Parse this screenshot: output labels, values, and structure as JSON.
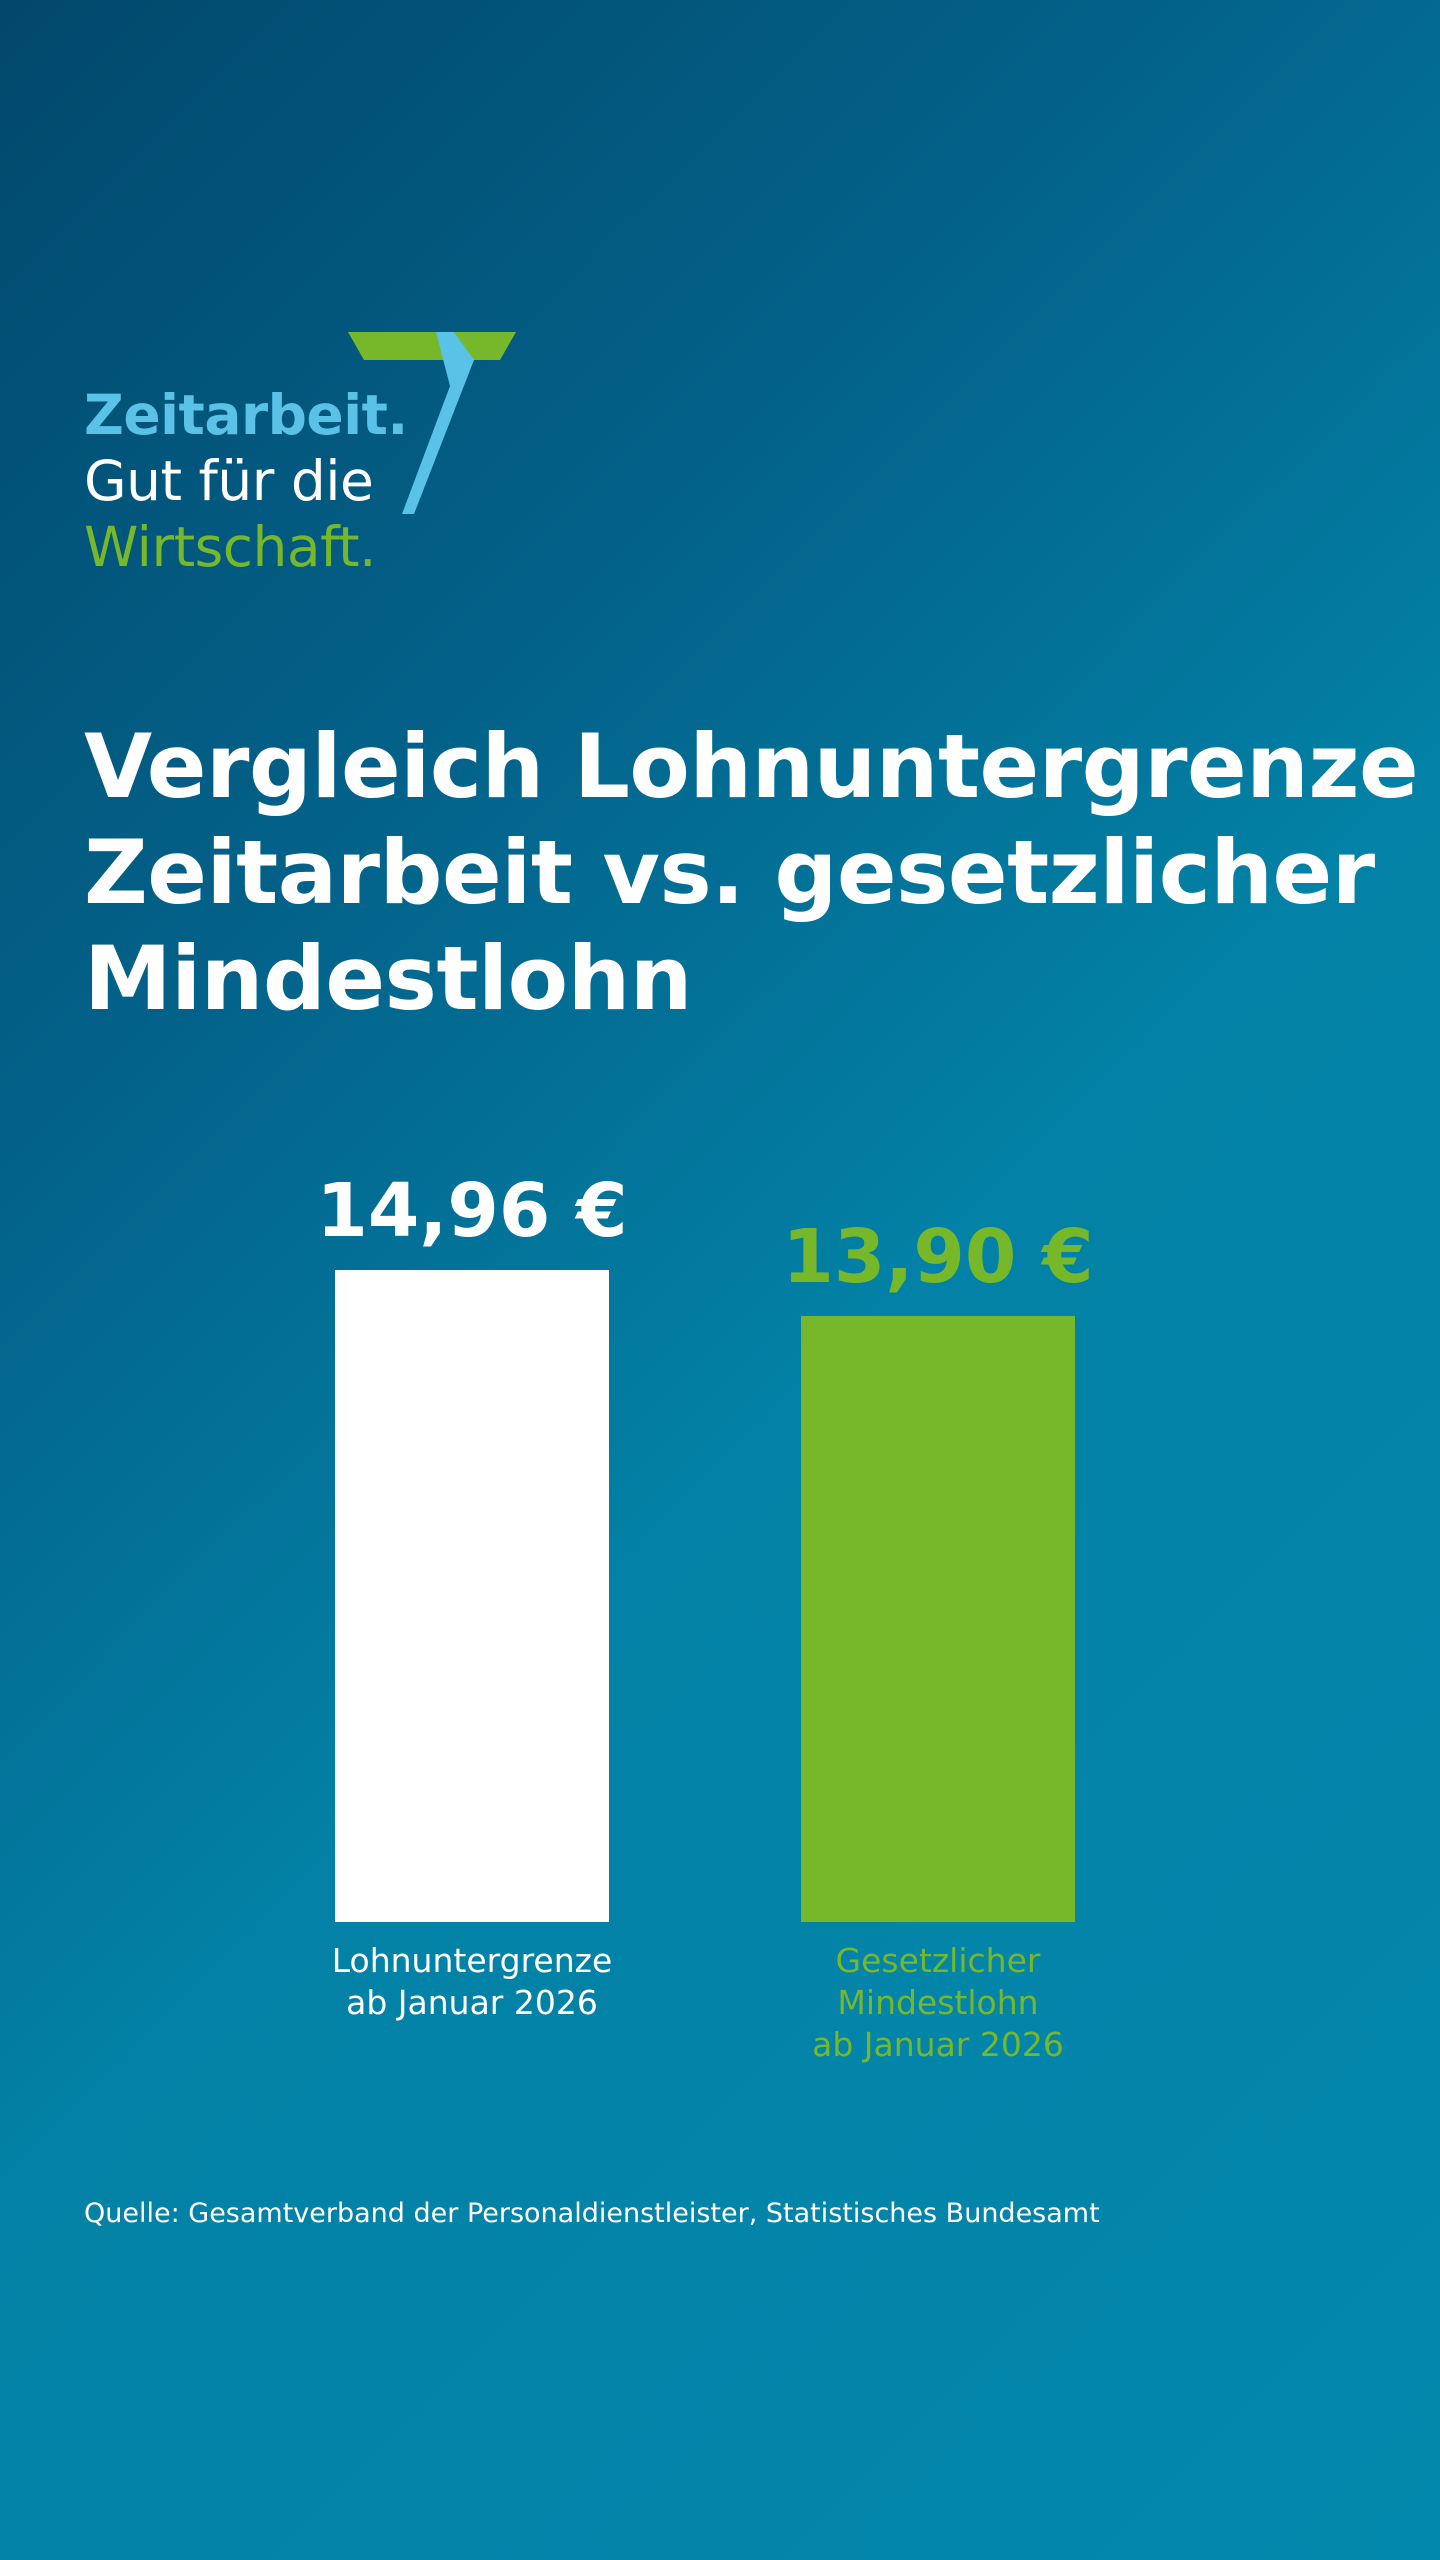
{
  "logo": {
    "line1": "Zeitarbeit.",
    "line2": "Gut für die",
    "line3": "Wirtschaft.",
    "mark_icon": "seven-ribbon-logo"
  },
  "title_lines": [
    "Vergleich Lohnuntergrenze",
    "Zeitarbeit vs. gesetzlicher",
    "Mindestlohn"
  ],
  "colors": {
    "light_blue": "#5bc2e7",
    "green": "#76b82a",
    "white": "#ffffff",
    "bg_dark": "#02486c",
    "bg_light": "#0388ad"
  },
  "chart_data": {
    "type": "bar",
    "title": "Vergleich Lohnuntergrenze Zeitarbeit vs. gesetzlicher Mindestlohn",
    "categories": [
      "Lohnuntergrenze ab Januar 2026",
      "Gesetzlicher Mindestlohn ab Januar 2026"
    ],
    "values": [
      14.96,
      13.9
    ],
    "value_labels": [
      "14,96 €",
      "13,90 €"
    ],
    "category_label_lines": [
      [
        "Lohnuntergrenze",
        "ab Januar 2026"
      ],
      [
        "Gesetzlicher",
        "Mindestlohn",
        "ab Januar 2026"
      ]
    ],
    "bar_colors": [
      "#ffffff",
      "#76b82a"
    ],
    "label_colors": [
      "#ffffff",
      "#76b82a"
    ],
    "xlabel": "",
    "ylabel": "",
    "ylim": [
      0,
      14.96
    ],
    "grid": false,
    "legend": "none"
  },
  "source": "Quelle: Gesamtverband der Personaldienstleister, Statistisches Bundesamt"
}
